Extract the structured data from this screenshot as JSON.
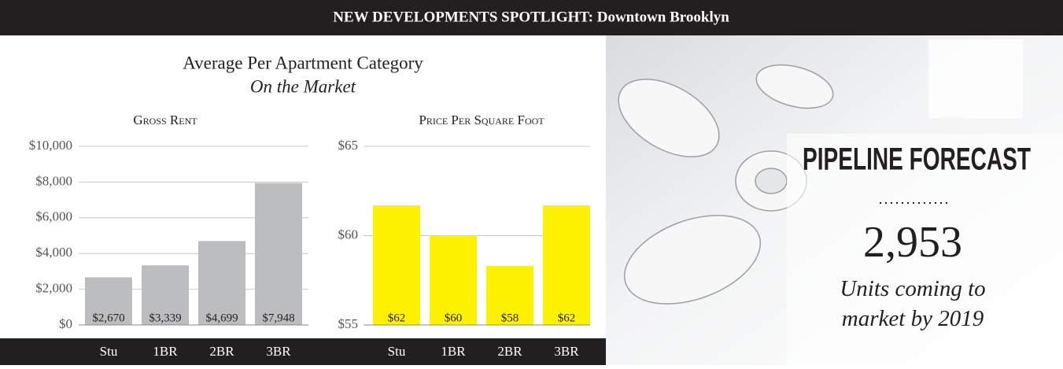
{
  "header": {
    "title": "NEW DEVELOPMENTS SPOTLIGHT: Downtown Brooklyn"
  },
  "section": {
    "title": "Average Per Apartment Category",
    "subtitle": "On the Market"
  },
  "chart_data": [
    {
      "type": "bar",
      "title": "Gross Rent",
      "categories": [
        "Stu",
        "1BR",
        "2BR",
        "3BR"
      ],
      "values": [
        2670,
        3339,
        4699,
        7948
      ],
      "value_labels": [
        "$2,670",
        "$3,339",
        "$4,699",
        "$7,948"
      ],
      "color": "#bcbdbf",
      "ylim": [
        0,
        10000
      ],
      "yticks": [
        {
          "value": 0,
          "label": "$0"
        },
        {
          "value": 2000,
          "label": "$2,000"
        },
        {
          "value": 4000,
          "label": "$4,000"
        },
        {
          "value": 6000,
          "label": "$6,000"
        },
        {
          "value": 8000,
          "label": "$8,000"
        },
        {
          "value": 10000,
          "label": "$10,000"
        }
      ],
      "grid": true
    },
    {
      "type": "bar",
      "title": "Price Per Square Foot",
      "categories": [
        "Stu",
        "1BR",
        "2BR",
        "3BR"
      ],
      "values": [
        61.7,
        60,
        58.3,
        61.7
      ],
      "value_labels": [
        "$62",
        "$60",
        "$58",
        "$62"
      ],
      "color": "#fff200",
      "ylim": [
        55,
        65
      ],
      "yticks": [
        {
          "value": 55,
          "label": "$55"
        },
        {
          "value": 60,
          "label": "$60"
        },
        {
          "value": 65,
          "label": "$65"
        }
      ],
      "grid": true
    }
  ],
  "pipeline": {
    "title": "PIPELINE FORECAST",
    "number": "2,953",
    "caption": "Units coming to market by 2019"
  }
}
